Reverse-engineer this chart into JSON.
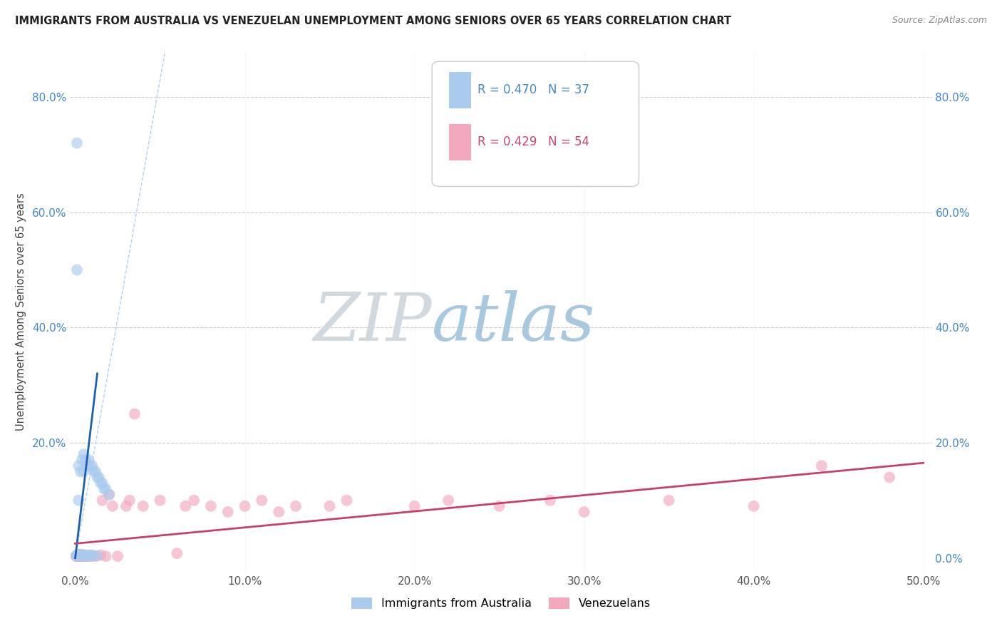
{
  "title": "IMMIGRANTS FROM AUSTRALIA VS VENEZUELAN UNEMPLOYMENT AMONG SENIORS OVER 65 YEARS CORRELATION CHART",
  "source": "Source: ZipAtlas.com",
  "ylabel_label": "Unemployment Among Seniors over 65 years",
  "legend_label1": "Immigrants from Australia",
  "legend_label2": "Venezuelans",
  "R1": 0.47,
  "N1": 37,
  "R2": 0.429,
  "N2": 54,
  "color1": "#aacbee",
  "color2": "#f4a8be",
  "trendline1_color": "#1a5fb4",
  "trendline2_color": "#c8406a",
  "dashed_line_color": "#aaccee",
  "watermark_zip_color": "#c8d8e8",
  "watermark_atlas_color": "#aac8e0",
  "xlim": [
    -0.003,
    0.505
  ],
  "ylim": [
    -0.025,
    0.88
  ],
  "xticks": [
    0.0,
    0.1,
    0.2,
    0.3,
    0.4,
    0.5
  ],
  "yticks": [
    0.0,
    0.2,
    0.4,
    0.6,
    0.8
  ],
  "aus_x": [
    0.0008,
    0.001,
    0.0012,
    0.0015,
    0.002,
    0.002,
    0.002,
    0.0025,
    0.003,
    0.003,
    0.003,
    0.0035,
    0.004,
    0.004,
    0.004,
    0.005,
    0.005,
    0.005,
    0.006,
    0.006,
    0.006,
    0.007,
    0.007,
    0.008,
    0.008,
    0.009,
    0.009,
    0.01,
    0.01,
    0.011,
    0.012,
    0.013,
    0.014,
    0.015,
    0.016,
    0.018,
    0.02
  ],
  "aus_y": [
    0.005,
    0.72,
    0.5,
    0.005,
    0.008,
    0.06,
    0.12,
    0.004,
    0.007,
    0.16,
    0.18,
    0.003,
    0.005,
    0.14,
    0.17,
    0.004,
    0.15,
    0.19,
    0.003,
    0.15,
    0.17,
    0.004,
    0.16,
    0.003,
    0.16,
    0.004,
    0.15,
    0.003,
    0.15,
    0.16,
    0.14,
    0.15,
    0.13,
    0.14,
    0.13,
    0.12,
    0.11
  ],
  "ven_x": [
    0.0005,
    0.001,
    0.001,
    0.0015,
    0.002,
    0.002,
    0.0025,
    0.003,
    0.003,
    0.003,
    0.004,
    0.004,
    0.004,
    0.005,
    0.005,
    0.006,
    0.006,
    0.007,
    0.007,
    0.008,
    0.008,
    0.009,
    0.01,
    0.01,
    0.012,
    0.015,
    0.015,
    0.018,
    0.02,
    0.022,
    0.025,
    0.03,
    0.03,
    0.035,
    0.04,
    0.05,
    0.06,
    0.07,
    0.08,
    0.09,
    0.1,
    0.11,
    0.12,
    0.15,
    0.16,
    0.18,
    0.2,
    0.25,
    0.26,
    0.3,
    0.35,
    0.4,
    0.45,
    0.48
  ],
  "ven_y": [
    0.003,
    0.004,
    0.005,
    0.003,
    0.004,
    0.005,
    0.003,
    0.004,
    0.005,
    0.006,
    0.003,
    0.005,
    0.006,
    0.003,
    0.005,
    0.004,
    0.006,
    0.003,
    0.005,
    0.004,
    0.006,
    0.003,
    0.004,
    0.006,
    0.003,
    0.005,
    0.12,
    0.004,
    0.13,
    0.1,
    0.005,
    0.09,
    0.11,
    0.1,
    0.09,
    0.25,
    0.08,
    0.09,
    0.1,
    0.07,
    0.09,
    0.08,
    0.1,
    0.09,
    0.1,
    0.08,
    0.09,
    0.09,
    0.1,
    0.08,
    0.1,
    0.09,
    0.15,
    0.13
  ]
}
